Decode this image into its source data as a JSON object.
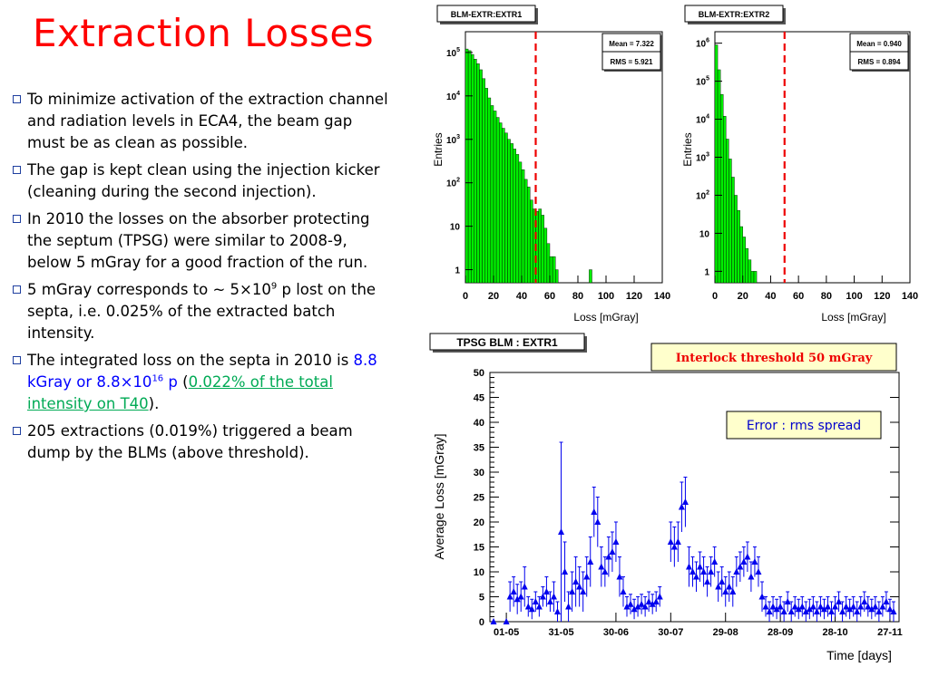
{
  "slide": {
    "title": "Extraction Losses",
    "bullets": [
      {
        "parts": [
          {
            "t": "To minimize activation of the extraction channel and radiation levels in ECA4, the beam gap must be as clean as possible."
          }
        ]
      },
      {
        "parts": [
          {
            "t": "The gap is kept clean using the injection kicker (cleaning during the second injection)."
          }
        ]
      },
      {
        "parts": [
          {
            "t": "In 2010 the losses on the absorber protecting the septum (TPSG) were similar to 2008-9, below 5 mGray for a good fraction of the run."
          }
        ]
      },
      {
        "parts": [
          {
            "t": "5 mGray corresponds to ~ 5×10"
          },
          {
            "t": "9",
            "sup": true
          },
          {
            "t": " p lost on the septa, i.e. 0.025% of the extracted batch intensity."
          }
        ]
      },
      {
        "parts": [
          {
            "t": "The integrated loss on the septa in 2010 is "
          },
          {
            "t": "8.8 kGray or 8.8×10",
            "cls": "blue"
          },
          {
            "t": "16",
            "sup": true,
            "cls": "blue"
          },
          {
            "t": " p",
            "cls": "blue"
          },
          {
            "t": " ("
          },
          {
            "t": "0.022% of the total intensity on T40",
            "cls": "green-link"
          },
          {
            "t": ")."
          }
        ]
      },
      {
        "parts": [
          {
            "t": "205 extractions (0.019%) triggered a beam dump by the BLMs (above threshold)."
          }
        ]
      }
    ]
  },
  "colors": {
    "title": "#ff0000",
    "hist_fill": "#00ee00",
    "threshold_line": "#ee0000",
    "marker": "#0000ee",
    "interlock_text": "#ee0000",
    "error_text": "#0000cc"
  },
  "chart_data": [
    {
      "type": "histogram",
      "title": "BLM-EXTR:EXTR1",
      "stats": {
        "mean": "Mean = 7.322",
        "rms": "RMS = 5.921"
      },
      "xlabel": "Loss [mGray]",
      "ylabel": "Entries",
      "xlim": [
        0,
        140
      ],
      "ylog": true,
      "ylim": [
        0.5,
        300000
      ],
      "xticks": [
        "0",
        "20",
        "40",
        "60",
        "80",
        "100",
        "120",
        "140"
      ],
      "ytick_labels": [
        "1",
        "10",
        "10^2",
        "10^3",
        "10^4",
        "10^5"
      ],
      "threshold": 50,
      "bins": [
        [
          0,
          120000
        ],
        [
          2,
          110000
        ],
        [
          4,
          90000
        ],
        [
          6,
          70000
        ],
        [
          8,
          55000
        ],
        [
          10,
          40000
        ],
        [
          12,
          25000
        ],
        [
          14,
          15000
        ],
        [
          16,
          9000
        ],
        [
          18,
          6000
        ],
        [
          20,
          4500
        ],
        [
          22,
          3200
        ],
        [
          24,
          2400
        ],
        [
          26,
          1800
        ],
        [
          28,
          1400
        ],
        [
          30,
          1000
        ],
        [
          32,
          800
        ],
        [
          34,
          600
        ],
        [
          36,
          450
        ],
        [
          38,
          300
        ],
        [
          40,
          200
        ],
        [
          42,
          120
        ],
        [
          44,
          80
        ],
        [
          46,
          40
        ],
        [
          48,
          25
        ],
        [
          50,
          22
        ],
        [
          52,
          25
        ],
        [
          54,
          18
        ],
        [
          56,
          9
        ],
        [
          58,
          4
        ],
        [
          60,
          2
        ],
        [
          62,
          2
        ],
        [
          64,
          1
        ],
        [
          88,
          1
        ]
      ]
    },
    {
      "type": "histogram",
      "title": "BLM-EXTR:EXTR2",
      "stats": {
        "mean": "Mean = 0.940",
        "rms": "RMS = 0.894"
      },
      "xlabel": "Loss [mGray]",
      "ylabel": "Entries",
      "xlim": [
        0,
        140
      ],
      "ylog": true,
      "ylim": [
        0.5,
        2000000
      ],
      "xticks": [
        "0",
        "20",
        "40",
        "60",
        "80",
        "100",
        "120",
        "140"
      ],
      "ytick_labels": [
        "1",
        "10",
        "10^2",
        "10^3",
        "10^4",
        "10^5",
        "10^6"
      ],
      "threshold": 50,
      "bins": [
        [
          0,
          900000
        ],
        [
          2,
          200000
        ],
        [
          4,
          45000
        ],
        [
          6,
          12000
        ],
        [
          8,
          3000
        ],
        [
          10,
          900
        ],
        [
          12,
          300
        ],
        [
          14,
          100
        ],
        [
          16,
          40
        ],
        [
          18,
          15
        ],
        [
          20,
          8
        ],
        [
          22,
          4
        ],
        [
          24,
          2
        ],
        [
          26,
          1
        ],
        [
          28,
          1
        ]
      ]
    },
    {
      "type": "scatter",
      "title": "TPSG BLM : EXTR1",
      "xlabel": "Time [days]",
      "ylabel": "Average Loss [mGray]",
      "ylim": [
        0,
        50
      ],
      "yticks": [
        0,
        5,
        10,
        15,
        20,
        25,
        30,
        35,
        40,
        45,
        50
      ],
      "xlim": [
        "2010-04-22",
        "2010-12-02"
      ],
      "xticks": [
        [
          "2010-05-01",
          "01-05"
        ],
        [
          "2010-05-31",
          "31-05"
        ],
        [
          "2010-06-30",
          "30-06"
        ],
        [
          "2010-07-30",
          "30-07"
        ],
        [
          "2010-08-29",
          "29-08"
        ],
        [
          "2010-09-28",
          "28-09"
        ],
        [
          "2010-10-28",
          "28-10"
        ],
        [
          "2010-11-27",
          "27-11"
        ]
      ],
      "annotations": {
        "interlock": "Interlock threshold 50 mGray",
        "error": "Error : rms spread"
      },
      "points": [
        [
          "2010-04-24",
          0,
          0
        ],
        [
          "2010-05-01",
          0,
          0
        ],
        [
          "2010-05-03",
          5,
          3
        ],
        [
          "2010-05-05",
          6,
          3
        ],
        [
          "2010-05-07",
          4.5,
          3
        ],
        [
          "2010-05-09",
          5,
          3
        ],
        [
          "2010-05-11",
          7,
          4
        ],
        [
          "2010-05-13",
          3,
          2
        ],
        [
          "2010-05-15",
          2.5,
          2
        ],
        [
          "2010-05-17",
          4,
          2
        ],
        [
          "2010-05-19",
          3,
          2
        ],
        [
          "2010-05-21",
          5,
          2
        ],
        [
          "2010-05-23",
          6,
          3
        ],
        [
          "2010-05-25",
          4,
          2
        ],
        [
          "2010-05-27",
          5,
          3
        ],
        [
          "2010-05-29",
          2,
          2
        ],
        [
          "2010-05-31",
          18,
          18
        ],
        [
          "2010-06-02",
          10,
          6
        ],
        [
          "2010-06-04",
          3,
          3
        ],
        [
          "2010-06-06",
          6,
          4
        ],
        [
          "2010-06-08",
          8,
          5
        ],
        [
          "2010-06-10",
          7,
          4
        ],
        [
          "2010-06-12",
          6,
          4
        ],
        [
          "2010-06-14",
          9,
          4
        ],
        [
          "2010-06-16",
          12,
          5
        ],
        [
          "2010-06-18",
          22,
          5
        ],
        [
          "2010-06-20",
          20,
          5
        ],
        [
          "2010-06-22",
          11,
          4
        ],
        [
          "2010-06-24",
          10,
          3
        ],
        [
          "2010-06-26",
          13,
          4
        ],
        [
          "2010-06-28",
          14,
          4
        ],
        [
          "2010-06-30",
          16,
          4
        ],
        [
          "2010-07-02",
          9,
          4
        ],
        [
          "2010-07-04",
          6,
          3
        ],
        [
          "2010-07-06",
          3,
          2
        ],
        [
          "2010-07-08",
          3.5,
          2
        ],
        [
          "2010-07-10",
          2.5,
          2
        ],
        [
          "2010-07-12",
          3,
          2
        ],
        [
          "2010-07-14",
          3.5,
          2
        ],
        [
          "2010-07-16",
          3,
          2
        ],
        [
          "2010-07-18",
          4,
          2
        ],
        [
          "2010-07-20",
          3.5,
          2
        ],
        [
          "2010-07-22",
          4,
          2
        ],
        [
          "2010-07-24",
          5,
          2
        ],
        [
          "2010-07-30",
          16,
          4
        ],
        [
          "2010-08-01",
          15,
          4
        ],
        [
          "2010-08-03",
          16,
          4
        ],
        [
          "2010-08-05",
          23,
          5
        ],
        [
          "2010-08-07",
          24,
          5
        ],
        [
          "2010-08-09",
          11,
          4
        ],
        [
          "2010-08-11",
          10,
          3
        ],
        [
          "2010-08-13",
          9,
          3
        ],
        [
          "2010-08-15",
          11,
          3
        ],
        [
          "2010-08-17",
          10,
          3
        ],
        [
          "2010-08-19",
          8,
          3
        ],
        [
          "2010-08-21",
          10,
          3
        ],
        [
          "2010-08-23",
          12,
          3
        ],
        [
          "2010-08-25",
          7,
          3
        ],
        [
          "2010-08-27",
          8,
          3
        ],
        [
          "2010-08-29",
          6,
          3
        ],
        [
          "2010-08-31",
          7,
          3
        ],
        [
          "2010-09-02",
          6,
          3
        ],
        [
          "2010-09-04",
          10,
          3
        ],
        [
          "2010-09-06",
          11,
          3
        ],
        [
          "2010-09-08",
          12,
          3
        ],
        [
          "2010-09-10",
          13,
          3
        ],
        [
          "2010-09-12",
          9,
          3
        ],
        [
          "2010-09-14",
          12,
          3
        ],
        [
          "2010-09-16",
          10,
          3
        ],
        [
          "2010-09-18",
          5,
          3
        ],
        [
          "2010-09-20",
          3,
          2
        ],
        [
          "2010-09-22",
          2,
          2
        ],
        [
          "2010-09-24",
          3,
          2
        ],
        [
          "2010-09-26",
          2.5,
          2
        ],
        [
          "2010-09-28",
          3,
          2
        ],
        [
          "2010-09-30",
          2,
          2
        ],
        [
          "2010-10-02",
          4,
          2
        ],
        [
          "2010-10-04",
          2,
          2
        ],
        [
          "2010-10-06",
          3,
          2
        ],
        [
          "2010-10-08",
          2.5,
          2
        ],
        [
          "2010-10-10",
          3,
          2
        ],
        [
          "2010-10-12",
          2,
          2
        ],
        [
          "2010-10-14",
          2.5,
          2
        ],
        [
          "2010-10-16",
          3,
          2
        ],
        [
          "2010-10-18",
          2,
          2
        ],
        [
          "2010-10-20",
          3,
          2
        ],
        [
          "2010-10-22",
          2.5,
          2
        ],
        [
          "2010-10-24",
          3,
          2
        ],
        [
          "2010-10-26",
          2,
          2
        ],
        [
          "2010-10-28",
          3,
          2
        ],
        [
          "2010-10-30",
          4,
          2
        ],
        [
          "2010-11-01",
          2,
          2
        ],
        [
          "2010-11-03",
          3,
          2
        ],
        [
          "2010-11-05",
          2.5,
          2
        ],
        [
          "2010-11-07",
          3,
          2
        ],
        [
          "2010-11-09",
          2,
          2
        ],
        [
          "2010-11-11",
          3,
          2
        ],
        [
          "2010-11-13",
          4,
          2
        ],
        [
          "2010-11-15",
          3,
          2
        ],
        [
          "2010-11-17",
          2.5,
          2
        ],
        [
          "2010-11-19",
          3,
          2
        ],
        [
          "2010-11-21",
          2,
          2
        ],
        [
          "2010-11-23",
          3,
          2
        ],
        [
          "2010-11-25",
          4,
          2
        ],
        [
          "2010-11-27",
          2.5,
          2
        ],
        [
          "2010-11-29",
          2,
          2
        ]
      ]
    }
  ]
}
